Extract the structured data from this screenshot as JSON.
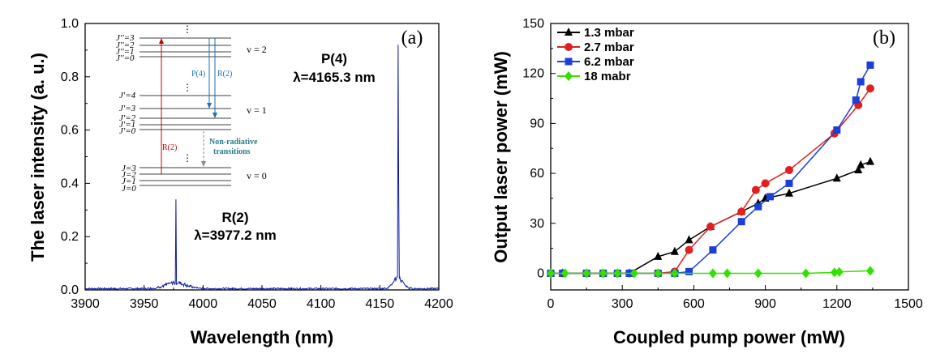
{
  "chart_data": [
    {
      "type": "line",
      "panel_label": "(a)",
      "xlabel": "Wavelength (nm)",
      "ylabel": "The laser intensity (a. u.)",
      "xlim": [
        3900,
        4200
      ],
      "ylim": [
        0.0,
        1.0
      ],
      "xticks": [
        "3900",
        "3950",
        "4000",
        "4050",
        "4100",
        "4150",
        "4200"
      ],
      "yticks": [
        "0.0",
        "0.2",
        "0.4",
        "0.6",
        "0.8",
        "1.0"
      ],
      "color": "#0a1aa6",
      "peaks": [
        {
          "x": 3977.2,
          "y": 0.34
        },
        {
          "x": 4165.3,
          "y": 0.92
        }
      ],
      "annotations": [
        {
          "line1": "R(2)",
          "line2": "λ=3977.2 nm"
        },
        {
          "line1": "P(4)",
          "line2": "λ=4165.3 nm"
        }
      ],
      "inset": {
        "upper_levels": [
          "J''=3",
          "J''=2",
          "J''=1",
          "J''=0"
        ],
        "middle_levels": [
          "J'=4",
          "J'=3",
          "J'=2",
          "J'=1",
          "J'=0"
        ],
        "lower_levels": [
          "J=3",
          "J=2",
          "J=1",
          "J=0"
        ],
        "vibrational": [
          "v = 2",
          "v = 1",
          "v = 0"
        ],
        "arrow_labels": [
          "P(4)",
          "R(2)",
          "R(2)"
        ],
        "non_radiative": [
          "Non-radiative",
          "transitions"
        ],
        "dots": "⋮"
      }
    },
    {
      "type": "line",
      "panel_label": "(b)",
      "xlabel": "Coupled pump power (mW)",
      "ylabel": "Output laser power (mW)",
      "xlim": [
        0,
        1500
      ],
      "ylim": [
        -10,
        150
      ],
      "xticks": [
        "0",
        "300",
        "600",
        "900",
        "1200",
        "1500"
      ],
      "yticks": [
        "0",
        "30",
        "60",
        "90",
        "120",
        "150"
      ],
      "series": [
        {
          "name": "1.3 mbar",
          "color": "#000000",
          "marker": "triangle",
          "points": [
            [
              0,
              0
            ],
            [
              50,
              0
            ],
            [
              150,
              0
            ],
            [
              220,
              0
            ],
            [
              280,
              0
            ],
            [
              330,
              0
            ],
            [
              450,
              10
            ],
            [
              520,
              13
            ],
            [
              580,
              20
            ],
            [
              670,
              28
            ],
            [
              800,
              37
            ],
            [
              870,
              42
            ],
            [
              900,
              45
            ],
            [
              1000,
              48
            ],
            [
              1200,
              57
            ],
            [
              1290,
              62
            ],
            [
              1300,
              65
            ],
            [
              1340,
              67
            ]
          ]
        },
        {
          "name": "2.7 mbar",
          "color": "#e02020",
          "marker": "circle",
          "points": [
            [
              0,
              0
            ],
            [
              50,
              0
            ],
            [
              150,
              0
            ],
            [
              220,
              0
            ],
            [
              280,
              0
            ],
            [
              330,
              0
            ],
            [
              450,
              0
            ],
            [
              520,
              1
            ],
            [
              580,
              14
            ],
            [
              670,
              28
            ],
            [
              800,
              37
            ],
            [
              860,
              50
            ],
            [
              900,
              54
            ],
            [
              1000,
              62
            ],
            [
              1190,
              84
            ],
            [
              1290,
              101
            ],
            [
              1340,
              111
            ]
          ]
        },
        {
          "name": "6.2 mbar",
          "color": "#1c3fd8",
          "marker": "square",
          "points": [
            [
              0,
              0
            ],
            [
              50,
              0
            ],
            [
              150,
              0
            ],
            [
              220,
              0
            ],
            [
              280,
              0
            ],
            [
              330,
              0
            ],
            [
              450,
              0
            ],
            [
              520,
              0
            ],
            [
              580,
              1
            ],
            [
              680,
              14
            ],
            [
              800,
              31
            ],
            [
              870,
              40
            ],
            [
              920,
              46
            ],
            [
              1000,
              54
            ],
            [
              1200,
              86
            ],
            [
              1280,
              104
            ],
            [
              1300,
              115
            ],
            [
              1340,
              125
            ]
          ]
        },
        {
          "name": "18 mabr",
          "color": "#33e000",
          "marker": "diamond",
          "points": [
            [
              0,
              0
            ],
            [
              60,
              0
            ],
            [
              150,
              0
            ],
            [
              220,
              0
            ],
            [
              280,
              0
            ],
            [
              350,
              0
            ],
            [
              450,
              0
            ],
            [
              520,
              0
            ],
            [
              680,
              0
            ],
            [
              740,
              0
            ],
            [
              870,
              0
            ],
            [
              1070,
              0
            ],
            [
              1190,
              0.5
            ],
            [
              1210,
              0.8
            ],
            [
              1340,
              1.5
            ]
          ]
        }
      ]
    }
  ]
}
